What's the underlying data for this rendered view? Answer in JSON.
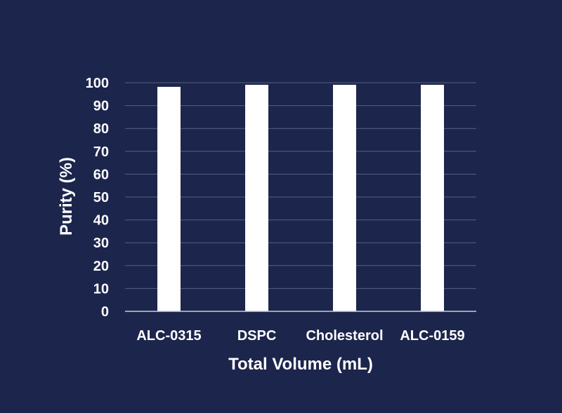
{
  "colors": {
    "background": "#1c254c",
    "bar": "#ffffff",
    "gridline": "#59607f",
    "axis": "#c8cbd8",
    "text": "#ffffff"
  },
  "chart_data": {
    "type": "bar",
    "title": "",
    "xlabel": "Total Volume (mL)",
    "ylabel": "Purity (%)",
    "categories": [
      "ALC-0315",
      "DSPC",
      "Cholesterol",
      "ALC-0159"
    ],
    "values": [
      98.2,
      99.1,
      99.1,
      99.1
    ],
    "ylim": [
      0,
      100
    ],
    "yticks": [
      "0",
      "10",
      "20",
      "30",
      "40",
      "50",
      "60",
      "70",
      "80",
      "90",
      "100"
    ],
    "grid": true,
    "legend": "none"
  }
}
